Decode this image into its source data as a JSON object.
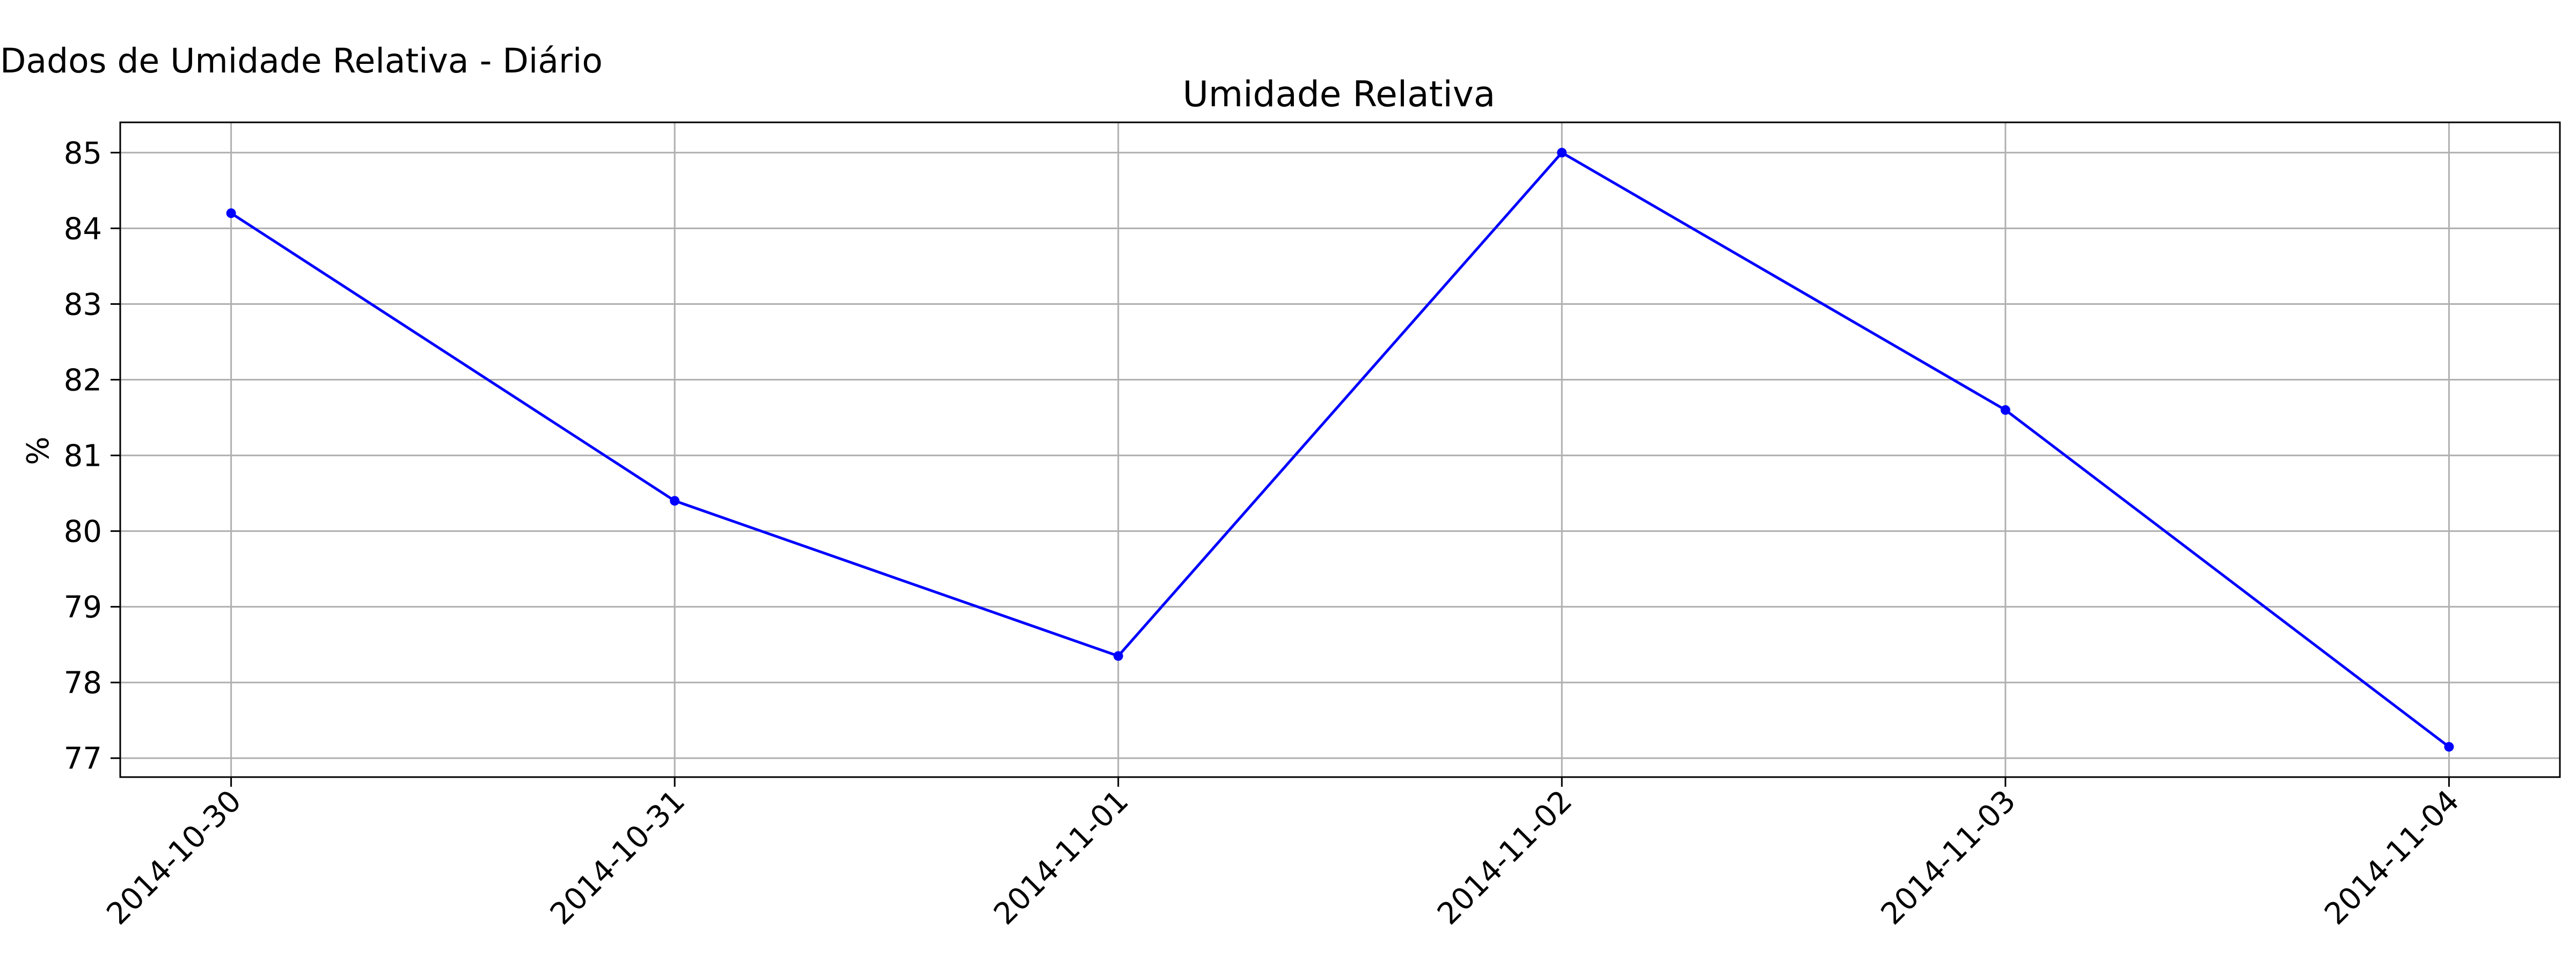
{
  "figure": {
    "title": "Dados de Umidade Relativa - Diário"
  },
  "chart_data": {
    "type": "line",
    "title": "Umidade Relativa",
    "xlabel": "",
    "ylabel": "%",
    "x": [
      "2014-10-30",
      "2014-10-31",
      "2014-11-01",
      "2014-11-02",
      "2014-11-03",
      "2014-11-04"
    ],
    "xlim": [
      "2014-10-29T18:00",
      "2014-11-04T06:00"
    ],
    "yticks": [
      77,
      78,
      79,
      80,
      81,
      82,
      83,
      84,
      85
    ],
    "ylim": [
      76.75,
      85.4
    ],
    "grid": true,
    "legend": "none",
    "series": [
      {
        "color": "#0000ff",
        "marker": "circle",
        "values": [
          84.2,
          80.4,
          78.35,
          85.0,
          81.6,
          77.15
        ]
      }
    ]
  }
}
